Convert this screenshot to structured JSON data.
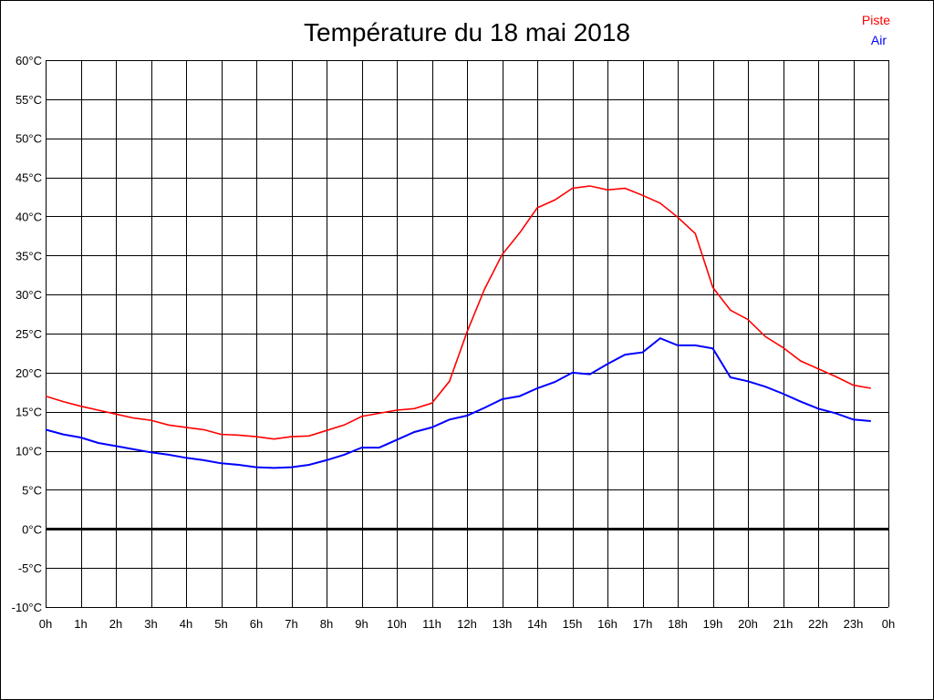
{
  "chart_data": {
    "type": "line",
    "title": "Température du 18 mai 2018",
    "xlabel": "",
    "ylabel": "",
    "x_unit": "hour",
    "xlim": [
      0,
      24
    ],
    "ylim": [
      -10,
      60
    ],
    "grid": true,
    "legend_position": "top-right",
    "x_tick_labels": [
      "0h",
      "1h",
      "2h",
      "3h",
      "4h",
      "5h",
      "6h",
      "7h",
      "8h",
      "9h",
      "10h",
      "11h",
      "12h",
      "13h",
      "14h",
      "15h",
      "16h",
      "17h",
      "18h",
      "19h",
      "20h",
      "21h",
      "22h",
      "23h",
      "0h"
    ],
    "y_tick_labels": [
      "-10°C",
      "-5°C",
      "0°C",
      "5°C",
      "10°C",
      "15°C",
      "20°C",
      "25°C",
      "30°C",
      "35°C",
      "40°C",
      "45°C",
      "50°C",
      "55°C",
      "60°C"
    ],
    "y_ticks": [
      -10,
      -5,
      0,
      5,
      10,
      15,
      20,
      25,
      30,
      35,
      40,
      45,
      50,
      55,
      60
    ],
    "x": [
      0,
      0.5,
      1,
      1.5,
      2,
      2.5,
      3,
      3.5,
      4,
      4.5,
      5,
      5.5,
      6,
      6.5,
      7,
      7.5,
      8,
      8.5,
      9,
      9.5,
      10,
      10.5,
      11,
      11.5,
      12,
      12.5,
      13,
      13.5,
      14,
      14.5,
      15,
      15.5,
      16,
      16.5,
      17,
      17.5,
      18,
      18.5,
      19,
      19.5,
      20,
      20.5,
      21,
      21.5,
      22,
      22.5,
      23,
      23.5
    ],
    "series": [
      {
        "name": "Piste",
        "color": "#ff0000",
        "values": [
          17.0,
          16.3,
          15.7,
          15.2,
          14.7,
          14.2,
          13.9,
          13.3,
          13.0,
          12.7,
          12.1,
          12.0,
          11.8,
          11.5,
          11.8,
          11.9,
          12.6,
          13.3,
          14.4,
          14.8,
          15.2,
          15.4,
          16.1,
          18.9,
          25.2,
          30.7,
          35.1,
          37.9,
          41.1,
          42.1,
          43.6,
          43.9,
          43.4,
          43.6,
          42.7,
          41.7,
          39.9,
          37.8,
          30.9,
          28.0,
          26.8,
          24.6,
          23.2,
          21.5,
          20.5,
          19.5,
          18.4,
          18.0
        ]
      },
      {
        "name": "Air",
        "color": "#0000ff",
        "values": [
          12.7,
          12.1,
          11.7,
          11.0,
          10.6,
          10.2,
          9.8,
          9.5,
          9.1,
          8.8,
          8.4,
          8.2,
          7.9,
          7.8,
          7.9,
          8.2,
          8.8,
          9.5,
          10.4,
          10.4,
          11.4,
          12.4,
          13.0,
          14.0,
          14.5,
          15.5,
          16.6,
          17.0,
          18.0,
          18.8,
          20.0,
          19.8,
          21.1,
          22.3,
          22.6,
          24.4,
          23.5,
          23.5,
          23.1,
          19.4,
          18.9,
          18.2,
          17.3,
          16.3,
          15.4,
          14.8,
          14.0,
          13.8
        ]
      }
    ]
  }
}
